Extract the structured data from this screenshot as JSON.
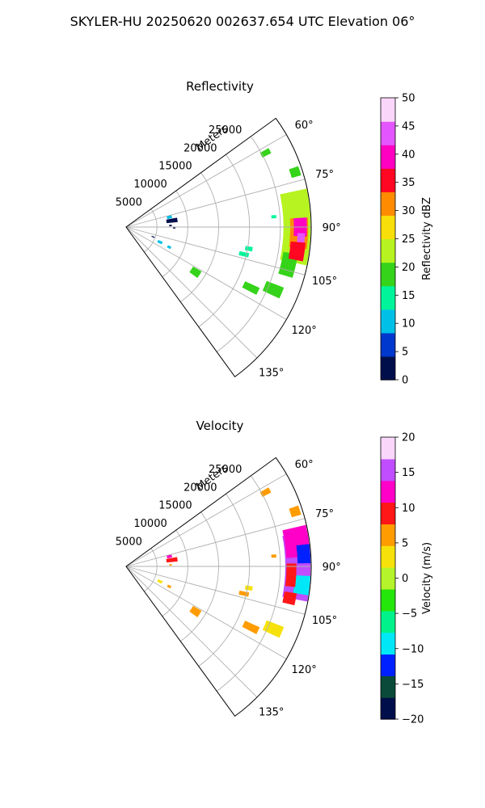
{
  "figure": {
    "title": "SKYLER-HU  20250620  002637.654 UTC Elevation 06°"
  },
  "chart_data": [
    {
      "type": "polar_sector",
      "title": "Reflectivity",
      "radial_label": "Meters",
      "range_ticks": [
        5000,
        10000,
        15000,
        20000,
        25000
      ],
      "range_max": 30000,
      "azimuth_range": [
        54,
        144
      ],
      "azimuth_ticks": [
        60,
        75,
        90,
        105,
        120,
        135
      ],
      "azimuth_tick_labels": [
        "60°",
        "75°",
        "90°",
        "105°",
        "120°",
        "135°"
      ],
      "grid": true,
      "colorbar": {
        "label": "Reflectivity dBZ",
        "min": 0,
        "max": 50,
        "ticks": [
          0,
          5,
          10,
          15,
          20,
          25,
          30,
          35,
          40,
          45,
          50
        ],
        "colors": [
          "#000e4b",
          "#0037cc",
          "#00c0e8",
          "#00f59a",
          "#35d319",
          "#b7f320",
          "#f9df0a",
          "#ff8c00",
          "#ff0622",
          "#ff00c2",
          "#e356ff",
          "#fbd6fb"
        ]
      },
      "echoes": [
        {
          "az": 90,
          "range": [
            25500,
            29900
          ],
          "width": 24,
          "value": 22
        },
        {
          "az": 84,
          "range": [
            25800,
            29900
          ],
          "width": 10,
          "value": 24
        },
        {
          "az": 92,
          "range": [
            26600,
            29500
          ],
          "width": 10,
          "value": 32
        },
        {
          "az": 90,
          "range": [
            27200,
            29300
          ],
          "width": 6,
          "value": 38
        },
        {
          "az": 94,
          "range": [
            27800,
            29000
          ],
          "width": 4,
          "value": 44
        },
        {
          "az": 103,
          "range": [
            25800,
            28200
          ],
          "width": 8,
          "value": 18
        },
        {
          "az": 98,
          "range": [
            26800,
            29200
          ],
          "width": 6,
          "value": 36
        },
        {
          "az": 62,
          "range": [
            24800,
            26400
          ],
          "width": 2,
          "value": 19
        },
        {
          "az": 72,
          "range": [
            28000,
            29600
          ],
          "width": 3,
          "value": 19
        },
        {
          "az": 86,
          "range": [
            23600,
            24400
          ],
          "width": 1.2,
          "value": 14
        },
        {
          "az": 100,
          "range": [
            19600,
            20800
          ],
          "width": 2,
          "value": 13
        },
        {
          "az": 103,
          "range": [
            18800,
            20400
          ],
          "width": 2,
          "value": 13
        },
        {
          "az": 113,
          "range": [
            24400,
            27400
          ],
          "width": 4,
          "value": 17
        },
        {
          "az": 116,
          "range": [
            21200,
            23800
          ],
          "width": 3,
          "value": 18
        },
        {
          "az": 123,
          "range": [
            12600,
            14200
          ],
          "width": 5,
          "value": 17
        },
        {
          "az": 77,
          "range": [
            6800,
            7600
          ],
          "width": 4,
          "value": 10
        },
        {
          "az": 82,
          "range": [
            6600,
            8400
          ],
          "width": 5,
          "value": 3
        },
        {
          "az": 88,
          "range": [
            7000,
            7400
          ],
          "width": 2,
          "value": 1
        },
        {
          "az": 114,
          "range": [
            5600,
            6400
          ],
          "width": 4,
          "value": 9
        },
        {
          "az": 115,
          "range": [
            7400,
            8000
          ],
          "width": 3,
          "value": 11
        },
        {
          "az": 110,
          "range": [
            4400,
            4900
          ],
          "width": 2,
          "value": 4
        },
        {
          "az": 91,
          "range": [
            7600,
            8000
          ],
          "width": 1.5,
          "value": 3
        }
      ]
    },
    {
      "type": "polar_sector",
      "title": "Velocity",
      "radial_label": "Meters",
      "range_ticks": [
        5000,
        10000,
        15000,
        20000,
        25000
      ],
      "range_max": 30000,
      "azimuth_range": [
        54,
        144
      ],
      "azimuth_ticks": [
        60,
        75,
        90,
        105,
        120,
        135
      ],
      "azimuth_tick_labels": [
        "60°",
        "75°",
        "90°",
        "105°",
        "120°",
        "135°"
      ],
      "grid": true,
      "colorbar": {
        "label": "Velocity (m/s)",
        "min": -20,
        "max": 20,
        "ticks": [
          -20,
          -15,
          -10,
          -5,
          0,
          5,
          10,
          15,
          20
        ],
        "colors": [
          "#000e4b",
          "#0a4a3a",
          "#0020ff",
          "#00e8f8",
          "#00f28a",
          "#25e60a",
          "#b5f32a",
          "#f6e20a",
          "#ff9c00",
          "#ff1616",
          "#ff00c8",
          "#c04dff",
          "#fbd6fb"
        ]
      },
      "echoes": [
        {
          "az": 90,
          "range": [
            25800,
            29900
          ],
          "width": 22,
          "value": 15
        },
        {
          "az": 82,
          "range": [
            26000,
            29900
          ],
          "width": 10,
          "value": 11
        },
        {
          "az": 86,
          "range": [
            27800,
            29900
          ],
          "width": 6,
          "value": -11
        },
        {
          "az": 96,
          "range": [
            27400,
            29900
          ],
          "width": 6,
          "value": -10
        },
        {
          "az": 93,
          "range": [
            26000,
            27600
          ],
          "width": 8,
          "value": 10
        },
        {
          "az": 101,
          "range": [
            26000,
            28000
          ],
          "width": 4,
          "value": 10
        },
        {
          "az": 62,
          "range": [
            24800,
            26400
          ],
          "width": 2,
          "value": 6
        },
        {
          "az": 72,
          "range": [
            28000,
            29600
          ],
          "width": 3,
          "value": 6
        },
        {
          "az": 86,
          "range": [
            23600,
            24400
          ],
          "width": 1.2,
          "value": 5
        },
        {
          "az": 100,
          "range": [
            19600,
            20800
          ],
          "width": 2,
          "value": 3
        },
        {
          "az": 103,
          "range": [
            18800,
            20400
          ],
          "width": 2,
          "value": 5
        },
        {
          "az": 113,
          "range": [
            24400,
            27400
          ],
          "width": 4,
          "value": 4
        },
        {
          "az": 116,
          "range": [
            21200,
            23800
          ],
          "width": 3,
          "value": 6
        },
        {
          "az": 123,
          "range": [
            12600,
            14200
          ],
          "width": 5,
          "value": 7
        },
        {
          "az": 77,
          "range": [
            6800,
            7600
          ],
          "width": 4,
          "value": 12
        },
        {
          "az": 82,
          "range": [
            6600,
            8400
          ],
          "width": 5,
          "value": 8
        },
        {
          "az": 88,
          "range": [
            7000,
            7400
          ],
          "width": 2,
          "value": 5
        },
        {
          "az": 114,
          "range": [
            5600,
            6400
          ],
          "width": 4,
          "value": 3
        },
        {
          "az": 115,
          "range": [
            7400,
            8000
          ],
          "width": 3,
          "value": 7
        }
      ]
    }
  ]
}
